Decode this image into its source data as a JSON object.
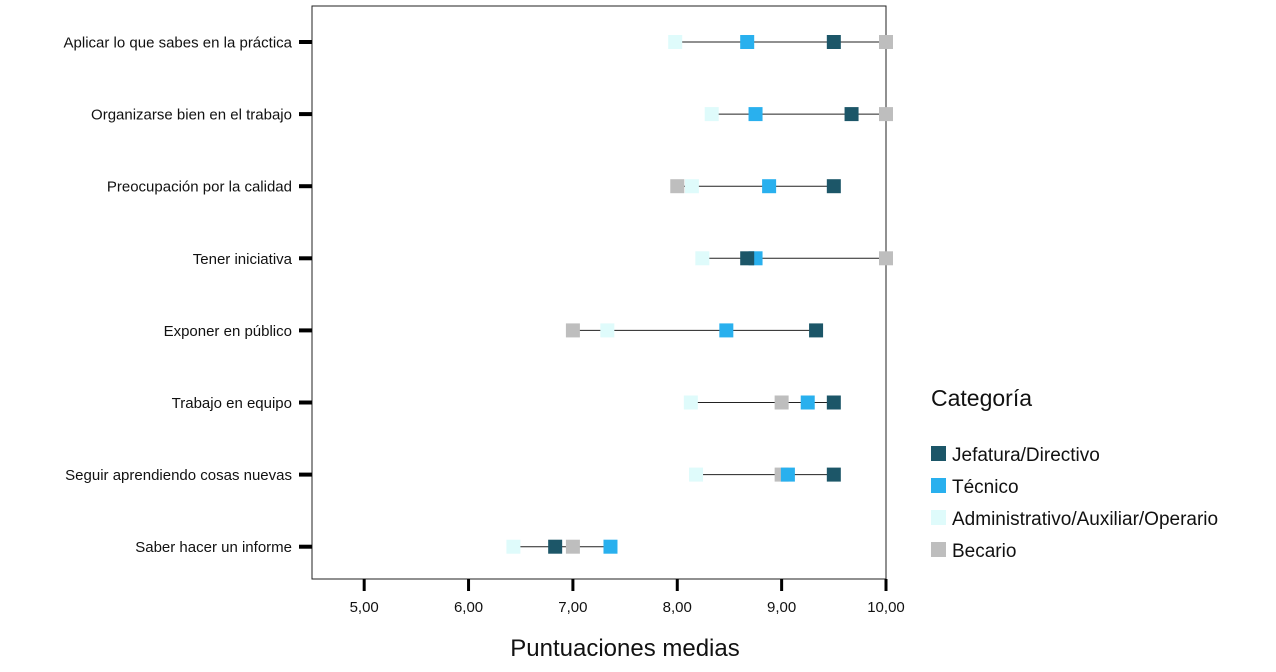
{
  "chart_data": {
    "type": "dot",
    "title": "",
    "xlabel": "Puntuaciones medias",
    "ylabel": "",
    "xlim": [
      4.5,
      10.0
    ],
    "x_ticks": [
      5,
      6,
      7,
      8,
      9,
      10
    ],
    "x_tick_labels": [
      "5,00",
      "6,00",
      "7,00",
      "8,00",
      "9,00",
      "10,00"
    ],
    "grid": false,
    "legend": {
      "title": "Categoría",
      "placement": "right"
    },
    "categories": [
      "Aplicar lo que sabes en la práctica",
      "Organizarse bien en el trabajo",
      "Preocupación por la calidad",
      "Tener iniciativa",
      "Exponer en público",
      "Trabajo en equipo",
      "Seguir aprendiendo cosas nuevas",
      "Saber hacer un informe"
    ],
    "series": [
      {
        "name": "Jefatura/Directivo",
        "color": "#1c5668",
        "values": [
          9.5,
          9.67,
          9.5,
          8.67,
          9.33,
          9.5,
          9.5,
          6.83
        ]
      },
      {
        "name": "Técnico",
        "color": "#29b0ee",
        "values": [
          8.67,
          8.75,
          8.88,
          8.75,
          8.47,
          9.25,
          9.06,
          7.36
        ]
      },
      {
        "name": "Administrativo/Auxiliar/Operario",
        "color": "#dffbfb",
        "values": [
          7.98,
          8.33,
          8.14,
          8.24,
          7.33,
          8.13,
          8.18,
          6.43
        ]
      },
      {
        "name": "Becario",
        "color": "#bebebe",
        "values": [
          10.0,
          10.0,
          8.0,
          10.0,
          7.0,
          9.0,
          9.0,
          7.0
        ]
      }
    ]
  }
}
